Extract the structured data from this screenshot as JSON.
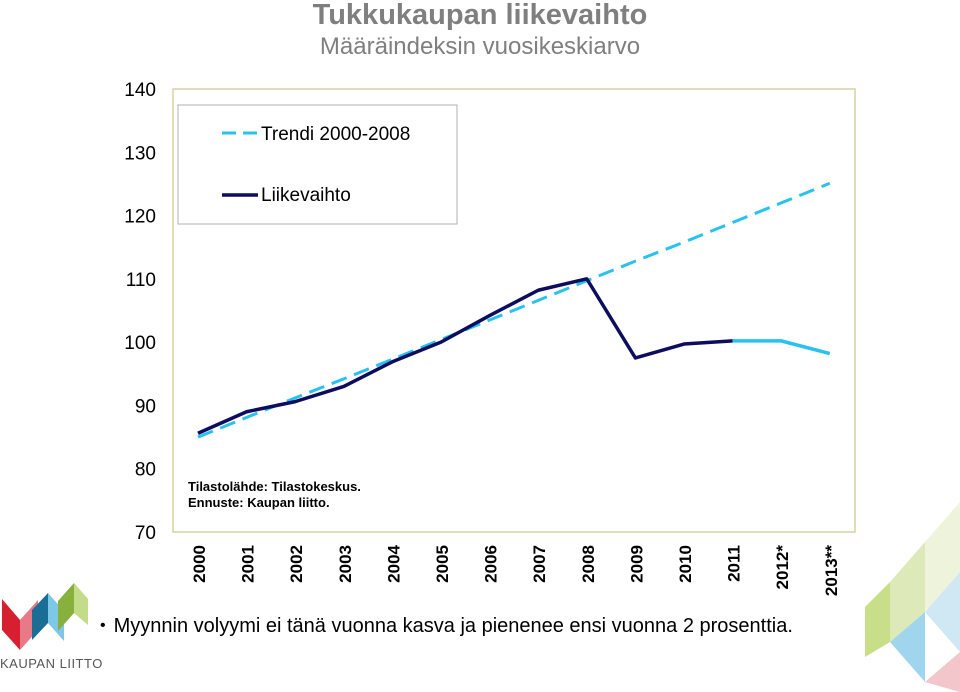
{
  "chart_data": {
    "type": "line",
    "title": "Tukkukaupan liikevaihto",
    "subtitle": "Määräindeksin vuosikeskiarvo",
    "categories": [
      "2000",
      "2001",
      "2002",
      "2003",
      "2004",
      "2005",
      "2006",
      "2007",
      "2008",
      "2009",
      "2010",
      "2011",
      "2012*",
      "2013**"
    ],
    "ylim": [
      70,
      140
    ],
    "yticks": [
      70,
      80,
      90,
      100,
      110,
      120,
      130,
      140
    ],
    "series": [
      {
        "name": "Trendi 2000-2008",
        "style": "dashed",
        "color": "#29c1ef",
        "values": [
          85.0,
          88.1,
          91.2,
          94.2,
          97.3,
          100.4,
          103.5,
          106.6,
          109.7,
          112.8,
          115.8,
          118.9,
          122.0,
          125.1
        ]
      },
      {
        "name": "Liikevaihto",
        "style": "solid",
        "color": "#0d0d5f",
        "forecast_color": "#29c1ef",
        "forecast_from_index": 11,
        "values": [
          85.6,
          89.0,
          90.6,
          93.0,
          96.9,
          100.0,
          104.2,
          108.2,
          110.0,
          97.5,
          99.7,
          100.2,
          100.2,
          98.2
        ]
      }
    ],
    "legend_position": "top-left",
    "grid": false,
    "source_note": [
      "Tilastolähde: Tilastokeskus.",
      "Ennuste: Kaupan liitto."
    ]
  },
  "footer": {
    "bullet_text": "Myynnin volyymi ei tänä vuonna kasva  ja pienenee ensi vuonna 2 prosenttia.",
    "logo_text": "KAUPAN LIITTO"
  },
  "colors": {
    "trend": "#29c1ef",
    "main": "#0d0d5f",
    "plot_border": "#d6d3a0",
    "title": "#7f7f7f"
  }
}
